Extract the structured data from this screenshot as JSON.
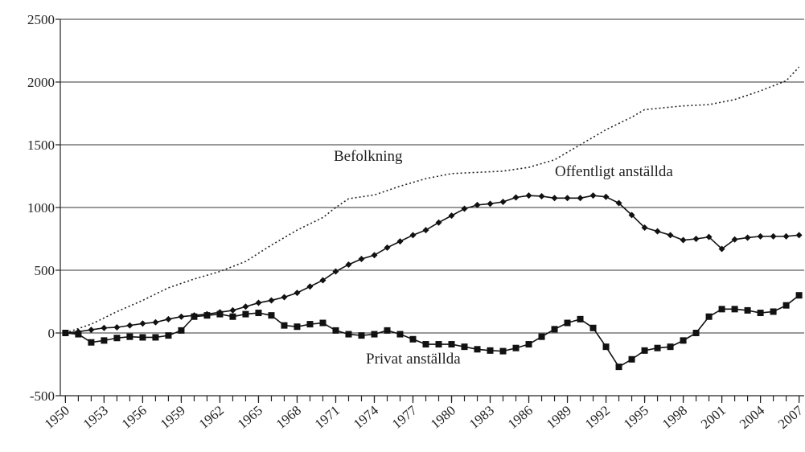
{
  "chart_data": {
    "type": "line",
    "x": [
      1950,
      1951,
      1952,
      1953,
      1954,
      1955,
      1956,
      1957,
      1958,
      1959,
      1960,
      1961,
      1962,
      1963,
      1964,
      1965,
      1966,
      1967,
      1968,
      1969,
      1970,
      1971,
      1972,
      1973,
      1974,
      1975,
      1976,
      1977,
      1978,
      1979,
      1980,
      1981,
      1982,
      1983,
      1984,
      1985,
      1986,
      1987,
      1988,
      1989,
      1990,
      1991,
      1992,
      1993,
      1994,
      1995,
      1996,
      1997,
      1998,
      1999,
      2000,
      2001,
      2002,
      2003,
      2004,
      2005,
      2006,
      2007
    ],
    "series": [
      {
        "name": "Befolkning",
        "color": "#222",
        "style": "dotted",
        "values": [
          0,
          35,
          70,
          120,
          170,
          215,
          260,
          310,
          360,
          395,
          430,
          460,
          490,
          530,
          570,
          635,
          700,
          760,
          820,
          870,
          920,
          1000,
          1070,
          1085,
          1100,
          1135,
          1170,
          1200,
          1230,
          1250,
          1270,
          1275,
          1280,
          1285,
          1290,
          1305,
          1320,
          1350,
          1380,
          1440,
          1500,
          1560,
          1620,
          1670,
          1720,
          1780,
          1790,
          1800,
          1810,
          1815,
          1820,
          1840,
          1860,
          1895,
          1930,
          1970,
          2010,
          2120
        ]
      },
      {
        "name": "Offentligt anställda",
        "color": "#111",
        "marker": "diamond",
        "values": [
          0,
          10,
          25,
          40,
          45,
          60,
          75,
          85,
          110,
          130,
          140,
          150,
          165,
          180,
          210,
          240,
          260,
          285,
          320,
          370,
          420,
          490,
          545,
          590,
          620,
          680,
          730,
          780,
          820,
          880,
          935,
          990,
          1020,
          1030,
          1045,
          1080,
          1095,
          1090,
          1075,
          1075,
          1075,
          1095,
          1085,
          1035,
          940,
          840,
          810,
          780,
          740,
          750,
          765,
          670,
          745,
          760,
          770,
          770,
          770,
          780
        ]
      },
      {
        "name": "Privat anställda",
        "color": "#111",
        "marker": "square",
        "values": [
          0,
          -10,
          -75,
          -60,
          -40,
          -30,
          -35,
          -35,
          -20,
          20,
          130,
          140,
          150,
          130,
          150,
          160,
          140,
          60,
          50,
          70,
          80,
          20,
          -10,
          -20,
          -10,
          20,
          -10,
          -50,
          -90,
          -90,
          -90,
          -110,
          -130,
          -140,
          -145,
          -120,
          -90,
          -30,
          30,
          80,
          110,
          40,
          -110,
          -270,
          -210,
          -140,
          -120,
          -110,
          -60,
          0,
          130,
          190,
          190,
          180,
          160,
          170,
          220,
          300
        ]
      }
    ],
    "xlim": [
      1949.6,
      2007.4
    ],
    "xticks": [
      1950,
      1953,
      1956,
      1959,
      1962,
      1965,
      1968,
      1971,
      1974,
      1977,
      1980,
      1983,
      1986,
      1989,
      1992,
      1995,
      1998,
      2001,
      2004,
      2007
    ],
    "ylim": [
      -500,
      2500
    ],
    "yticks": [
      -500,
      0,
      500,
      1000,
      1500,
      2000,
      2500
    ],
    "grid": true
  }
}
